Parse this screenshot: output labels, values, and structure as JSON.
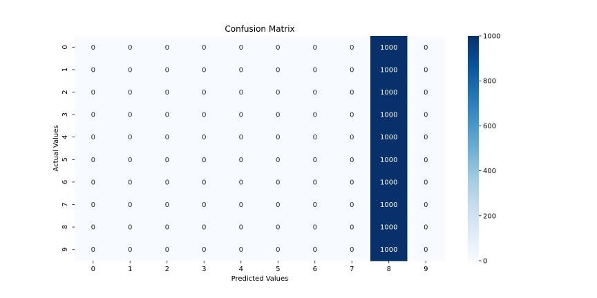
{
  "chart_data": {
    "type": "heatmap",
    "title": "Confusion Matrix",
    "xlabel": "Predicted Values",
    "ylabel": "Actual Values",
    "x_categories": [
      "0",
      "1",
      "2",
      "3",
      "4",
      "5",
      "6",
      "7",
      "8",
      "9"
    ],
    "y_categories": [
      "0",
      "1",
      "2",
      "3",
      "4",
      "5",
      "6",
      "7",
      "8",
      "9"
    ],
    "values": [
      [
        0,
        0,
        0,
        0,
        0,
        0,
        0,
        0,
        1000,
        0
      ],
      [
        0,
        0,
        0,
        0,
        0,
        0,
        0,
        0,
        1000,
        0
      ],
      [
        0,
        0,
        0,
        0,
        0,
        0,
        0,
        0,
        1000,
        0
      ],
      [
        0,
        0,
        0,
        0,
        0,
        0,
        0,
        0,
        1000,
        0
      ],
      [
        0,
        0,
        0,
        0,
        0,
        0,
        0,
        0,
        1000,
        0
      ],
      [
        0,
        0,
        0,
        0,
        0,
        0,
        0,
        0,
        1000,
        0
      ],
      [
        0,
        0,
        0,
        0,
        0,
        0,
        0,
        0,
        1000,
        0
      ],
      [
        0,
        0,
        0,
        0,
        0,
        0,
        0,
        0,
        1000,
        0
      ],
      [
        0,
        0,
        0,
        0,
        0,
        0,
        0,
        0,
        1000,
        0
      ],
      [
        0,
        0,
        0,
        0,
        0,
        0,
        0,
        0,
        1000,
        0
      ]
    ],
    "colorbar": {
      "min": 0,
      "max": 1000,
      "ticks": [
        "0",
        "200",
        "400",
        "600",
        "800",
        "1000"
      ],
      "colormap": "Blues"
    },
    "colors": {
      "low": "#f7fbff",
      "high": "#08306b",
      "label_on_light": "#262626",
      "label_on_dark": "#ffffff"
    },
    "annotations": true,
    "grid": false
  }
}
